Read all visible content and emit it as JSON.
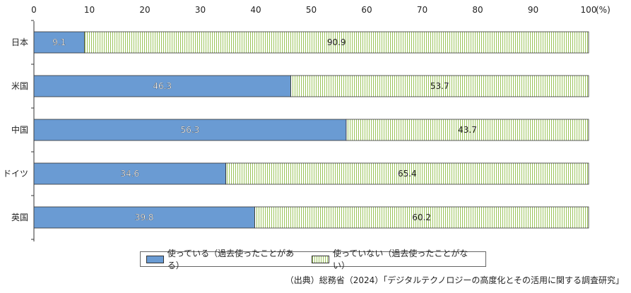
{
  "chart_data": {
    "type": "bar",
    "orientation": "horizontal",
    "stacked": true,
    "categories": [
      "日本",
      "米国",
      "中国",
      "ドイツ",
      "英国"
    ],
    "series": [
      {
        "name": "使っている（過去使ったことがある）",
        "values": [
          9.1,
          46.3,
          56.3,
          34.6,
          39.8
        ],
        "color": "#6a9bd3"
      },
      {
        "name": "使っていない（過去使ったことがない）",
        "values": [
          90.9,
          53.7,
          43.7,
          65.4,
          60.2
        ],
        "color": "#9bc45a"
      }
    ],
    "xlim": [
      0,
      100
    ],
    "xticks": [
      0,
      10,
      20,
      30,
      40,
      50,
      60,
      70,
      80,
      90,
      100
    ],
    "xunit": "(%)",
    "legend_position": "bottom",
    "grid": false
  },
  "source_note": "（出典）総務省（2024）「デジタルテクノロジーの高度化とその活用に関する調査研究」"
}
